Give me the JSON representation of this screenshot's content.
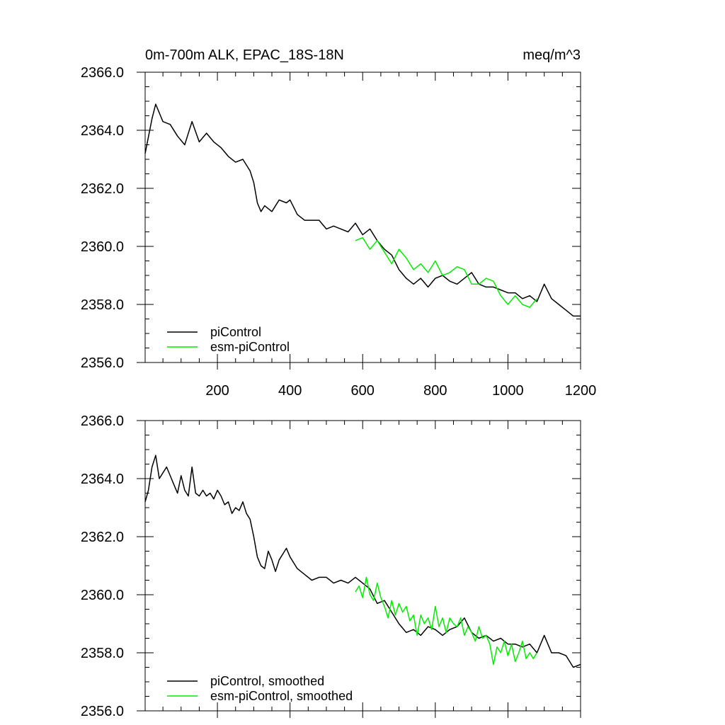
{
  "figure": {
    "title_left": "0m-700m ALK, EPAC_18S-18N",
    "title_right": "meq/m^3"
  },
  "colors": {
    "piControl": "#000000",
    "esm_piControl": "#00ee00",
    "axis": "#000000",
    "background": "#ffffff"
  },
  "chart_data": [
    {
      "type": "line",
      "title": "0m-700m ALK, EPAC_18S-18N",
      "units": "meq/m^3",
      "xlabel": "",
      "ylabel": "",
      "xlim": [
        1,
        1200
      ],
      "ylim": [
        2356.0,
        2366.0
      ],
      "x_ticks": [
        200,
        400,
        600,
        800,
        1000,
        1200
      ],
      "x_tick_labels": [
        "200",
        "400",
        "600",
        "800",
        "1000",
        "1200"
      ],
      "y_ticks": [
        2356.0,
        2358.0,
        2360.0,
        2362.0,
        2364.0,
        2366.0
      ],
      "y_tick_labels": [
        "2356.0",
        "2358.0",
        "2360.0",
        "2362.0",
        "2364.0",
        "2366.0"
      ],
      "legend_position": "bottom-left",
      "series": [
        {
          "name": "piControl",
          "color": "#000000",
          "x": [
            1,
            20,
            30,
            50,
            70,
            90,
            110,
            130,
            150,
            170,
            190,
            210,
            230,
            250,
            270,
            290,
            300,
            310,
            320,
            330,
            350,
            370,
            390,
            400,
            420,
            440,
            460,
            480,
            500,
            520,
            540,
            560,
            580,
            600,
            620,
            640,
            660,
            680,
            700,
            720,
            740,
            760,
            780,
            800,
            820,
            840,
            860,
            880,
            900,
            920,
            940,
            960,
            980,
            1000,
            1020,
            1040,
            1060,
            1080,
            1100,
            1120,
            1140,
            1160,
            1180,
            1200
          ],
          "y": [
            2363.2,
            2364.4,
            2364.9,
            2364.3,
            2364.2,
            2363.8,
            2363.5,
            2364.3,
            2363.6,
            2363.9,
            2363.6,
            2363.4,
            2363.1,
            2362.9,
            2363.0,
            2362.6,
            2362.2,
            2361.5,
            2361.2,
            2361.4,
            2361.2,
            2361.6,
            2361.5,
            2361.6,
            2361.1,
            2360.9,
            2360.9,
            2360.9,
            2360.6,
            2360.7,
            2360.6,
            2360.5,
            2360.8,
            2360.4,
            2360.6,
            2360.2,
            2359.9,
            2359.7,
            2359.2,
            2358.9,
            2358.7,
            2358.9,
            2358.6,
            2358.9,
            2359.0,
            2358.8,
            2358.7,
            2358.9,
            2359.1,
            2358.7,
            2358.6,
            2358.6,
            2358.5,
            2358.4,
            2358.4,
            2358.2,
            2358.3,
            2358.1,
            2358.7,
            2358.2,
            2358.0,
            2357.8,
            2357.6,
            2357.6
          ]
        },
        {
          "name": "esm-piControl",
          "color": "#00ee00",
          "x": [
            580,
            600,
            620,
            640,
            660,
            680,
            700,
            720,
            740,
            760,
            780,
            800,
            820,
            840,
            860,
            880,
            900,
            920,
            940,
            960,
            980,
            1000,
            1020,
            1040,
            1060,
            1080
          ],
          "y": [
            2360.2,
            2360.3,
            2359.9,
            2360.2,
            2359.8,
            2359.4,
            2359.9,
            2359.6,
            2359.2,
            2359.4,
            2359.1,
            2359.5,
            2359.0,
            2359.1,
            2359.3,
            2359.2,
            2358.7,
            2358.7,
            2358.9,
            2358.8,
            2358.3,
            2358.0,
            2358.3,
            2358.0,
            2357.9,
            2358.2
          ]
        }
      ]
    },
    {
      "type": "line",
      "title": "",
      "xlabel": "",
      "ylabel": "",
      "xlim": [
        1,
        1200
      ],
      "ylim": [
        2356.0,
        2366.0
      ],
      "x_ticks": [
        200,
        400,
        600,
        800,
        1000,
        1200
      ],
      "x_tick_labels": [],
      "y_ticks": [
        2356.0,
        2358.0,
        2360.0,
        2362.0,
        2364.0,
        2366.0
      ],
      "y_tick_labels": [
        "2356.0",
        "2358.0",
        "2360.0",
        "2362.0",
        "2364.0",
        "2366.0"
      ],
      "legend_position": "bottom-left",
      "series": [
        {
          "name": "piControl, smoothed",
          "color": "#000000",
          "x": [
            1,
            10,
            20,
            30,
            40,
            50,
            60,
            70,
            80,
            90,
            100,
            110,
            120,
            130,
            140,
            150,
            160,
            170,
            180,
            190,
            200,
            210,
            220,
            230,
            240,
            250,
            260,
            270,
            280,
            290,
            300,
            310,
            320,
            330,
            340,
            350,
            360,
            370,
            380,
            390,
            400,
            420,
            440,
            460,
            480,
            500,
            520,
            540,
            560,
            580,
            600,
            620,
            640,
            660,
            680,
            700,
            720,
            740,
            760,
            780,
            800,
            820,
            840,
            860,
            880,
            900,
            920,
            940,
            960,
            980,
            1000,
            1020,
            1040,
            1060,
            1080,
            1100,
            1120,
            1140,
            1160,
            1180,
            1200
          ],
          "y": [
            2363.2,
            2363.6,
            2364.4,
            2364.8,
            2364.0,
            2364.2,
            2364.4,
            2364.1,
            2363.8,
            2363.5,
            2364.1,
            2363.6,
            2363.4,
            2364.4,
            2363.5,
            2363.4,
            2363.6,
            2363.4,
            2363.5,
            2363.3,
            2363.6,
            2363.4,
            2363.1,
            2363.2,
            2362.8,
            2363.0,
            2362.9,
            2363.2,
            2362.8,
            2362.6,
            2362.0,
            2361.3,
            2361.0,
            2360.9,
            2361.5,
            2361.2,
            2360.8,
            2361.2,
            2361.4,
            2361.6,
            2361.3,
            2360.9,
            2360.7,
            2360.5,
            2360.6,
            2360.6,
            2360.4,
            2360.5,
            2360.4,
            2360.6,
            2360.4,
            2360.2,
            2359.7,
            2359.8,
            2359.4,
            2359.0,
            2358.7,
            2358.8,
            2358.6,
            2358.9,
            2358.8,
            2358.6,
            2358.8,
            2358.9,
            2359.2,
            2358.7,
            2358.5,
            2358.6,
            2358.4,
            2358.5,
            2358.3,
            2358.3,
            2358.2,
            2358.3,
            2358.0,
            2358.6,
            2358.0,
            2358.0,
            2357.9,
            2357.5,
            2357.6
          ]
        },
        {
          "name": "esm-piControl, smoothed",
          "color": "#00ee00",
          "x": [
            580,
            590,
            600,
            610,
            620,
            630,
            640,
            650,
            660,
            670,
            680,
            690,
            700,
            710,
            720,
            730,
            740,
            750,
            760,
            770,
            780,
            790,
            800,
            810,
            820,
            830,
            840,
            850,
            860,
            870,
            880,
            890,
            900,
            910,
            920,
            930,
            940,
            950,
            960,
            970,
            980,
            990,
            1000,
            1010,
            1020,
            1030,
            1040,
            1050,
            1060,
            1070,
            1080
          ],
          "y": [
            2360.1,
            2360.3,
            2359.9,
            2360.6,
            2360.0,
            2359.8,
            2360.4,
            2359.9,
            2359.6,
            2359.2,
            2359.8,
            2359.3,
            2359.7,
            2359.4,
            2359.6,
            2359.1,
            2359.3,
            2358.6,
            2359.3,
            2359.0,
            2359.2,
            2358.8,
            2359.6,
            2358.9,
            2359.2,
            2358.7,
            2359.2,
            2359.0,
            2358.9,
            2359.2,
            2358.6,
            2358.9,
            2358.7,
            2358.4,
            2358.9,
            2358.5,
            2358.6,
            2358.3,
            2357.6,
            2358.2,
            2358.0,
            2358.4,
            2357.9,
            2358.3,
            2357.7,
            2358.0,
            2358.4,
            2357.8,
            2358.0,
            2357.8,
            2358.0
          ]
        }
      ]
    }
  ]
}
